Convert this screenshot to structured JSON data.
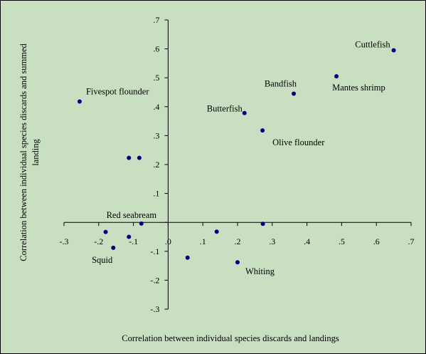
{
  "chart_data": {
    "type": "scatter",
    "title": "",
    "xlabel": "Correlation between individual species discards and landings",
    "ylabel": "Correlation between individual species discards and summed landing",
    "xlim": [
      -0.3,
      0.7
    ],
    "ylim": [
      -0.3,
      0.7
    ],
    "x_ticks": [
      -0.3,
      -0.2,
      -0.1,
      0,
      0.1,
      0.2,
      0.3,
      0.4,
      0.5,
      0.6,
      0.7
    ],
    "x_tick_labels": [
      "-.3",
      "-.2",
      "-.1",
      ".0",
      ".1",
      ".2",
      ".3",
      ".4",
      ".5",
      ".6",
      ".7"
    ],
    "y_ticks": [
      -0.3,
      -0.2,
      -0.1,
      0,
      0.1,
      0.2,
      0.3,
      0.4,
      0.5,
      0.6,
      0.7
    ],
    "y_tick_labels": [
      "-.3",
      "-.2",
      "-.1",
      "0",
      ".1",
      ".2",
      ".3",
      ".4",
      ".5",
      ".6",
      ".7"
    ],
    "grid": false,
    "marker_color": "#000080",
    "background_color": "#c8dfc1",
    "points": [
      {
        "x": 0.65,
        "y": 0.595,
        "label": "Cuttlefish",
        "anchor": "end",
        "dx": -5,
        "dy": -4
      },
      {
        "x": 0.485,
        "y": 0.505,
        "label": "Mantes shrimp",
        "anchor": "start",
        "dx": -6,
        "dy": 20
      },
      {
        "x": 0.362,
        "y": 0.445,
        "label": "Bandfish",
        "anchor": "end",
        "dx": 4,
        "dy": -10
      },
      {
        "x": 0.22,
        "y": 0.378,
        "label": "Butterfish",
        "anchor": "end",
        "dx": -3,
        "dy": -2
      },
      {
        "x": 0.272,
        "y": 0.318,
        "label": "Olive flounder",
        "anchor": "start",
        "dx": 14,
        "dy": 21
      },
      {
        "x": -0.255,
        "y": 0.418,
        "label": "Fivespot flounder",
        "anchor": "start",
        "dx": 9,
        "dy": -10
      },
      {
        "x": -0.113,
        "y": 0.223,
        "label": "",
        "anchor": "start",
        "dx": 0,
        "dy": 0
      },
      {
        "x": -0.083,
        "y": 0.223,
        "label": "",
        "anchor": "start",
        "dx": 0,
        "dy": 0
      },
      {
        "x": -0.077,
        "y": -0.004,
        "label": "Red seabream",
        "anchor": "middle",
        "dx": -14,
        "dy": -8
      },
      {
        "x": 0.273,
        "y": -0.005,
        "label": "",
        "anchor": "start",
        "dx": 0,
        "dy": 0
      },
      {
        "x": -0.18,
        "y": -0.033,
        "label": "",
        "anchor": "start",
        "dx": 0,
        "dy": 0
      },
      {
        "x": -0.113,
        "y": -0.05,
        "label": "",
        "anchor": "start",
        "dx": 0,
        "dy": 0
      },
      {
        "x": -0.158,
        "y": -0.088,
        "label": "Squid",
        "anchor": "end",
        "dx": -1,
        "dy": 21
      },
      {
        "x": 0.14,
        "y": -0.032,
        "label": "",
        "anchor": "start",
        "dx": 0,
        "dy": 0
      },
      {
        "x": 0.056,
        "y": -0.122,
        "label": "",
        "anchor": "start",
        "dx": 0,
        "dy": 0
      },
      {
        "x": 0.2,
        "y": -0.138,
        "label": "Whiting",
        "anchor": "start",
        "dx": 11,
        "dy": 17
      }
    ]
  }
}
